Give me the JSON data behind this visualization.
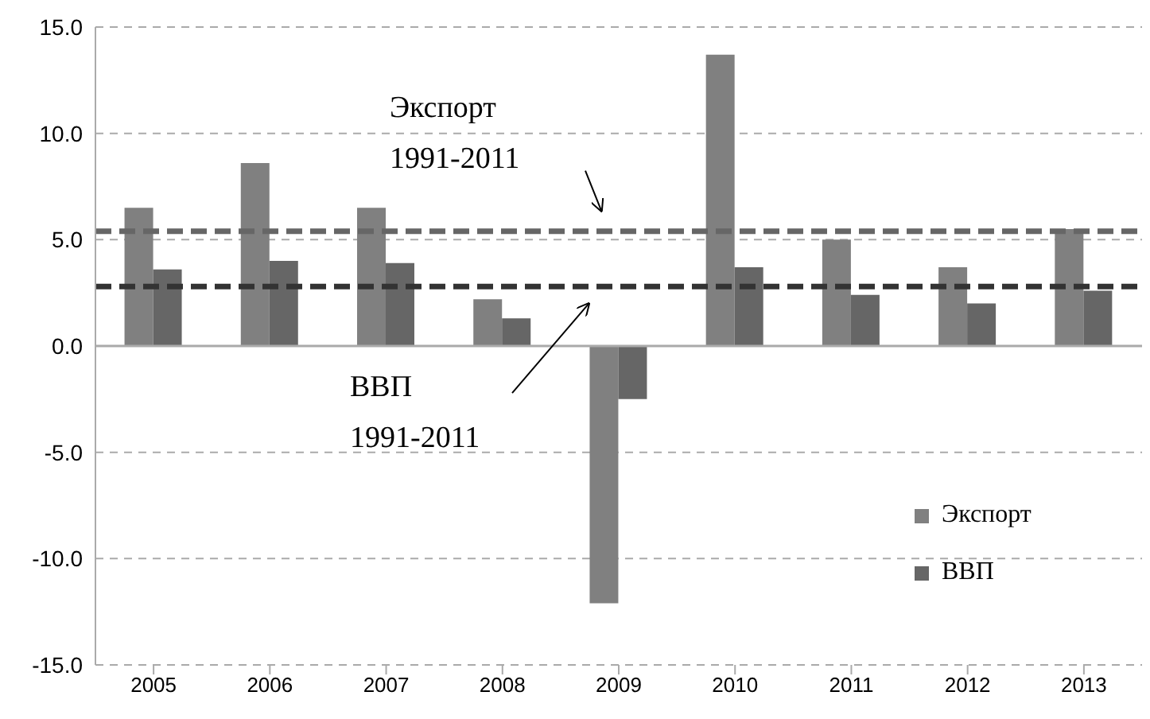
{
  "chart_data": {
    "type": "bar",
    "categories": [
      "2005",
      "2006",
      "2007",
      "2008",
      "2009",
      "2010",
      "2011",
      "2012",
      "2013"
    ],
    "series": [
      {
        "name": "Экспорт",
        "color": "#808080",
        "values": [
          6.5,
          8.6,
          6.5,
          2.2,
          -12.1,
          13.7,
          5.0,
          3.7,
          5.5
        ]
      },
      {
        "name": "ВВП",
        "color": "#666666",
        "values": [
          3.6,
          4.0,
          3.9,
          1.3,
          -2.5,
          3.7,
          2.4,
          2.0,
          2.6
        ]
      }
    ],
    "ylim": [
      -15,
      15
    ],
    "yticks": [
      {
        "value": -15,
        "label": "-15.0"
      },
      {
        "value": -10,
        "label": "-10.0"
      },
      {
        "value": -5,
        "label": "-5.0"
      },
      {
        "value": 0,
        "label": "0.0"
      },
      {
        "value": 5,
        "label": "5.0"
      },
      {
        "value": 10,
        "label": "10.0"
      },
      {
        "value": 15,
        "label": "15.0"
      }
    ],
    "ref_lines": [
      {
        "axis": "y",
        "value": 5.4,
        "label": "Экспорт 1991-2011",
        "color": "#666666",
        "line_style": "dashed"
      },
      {
        "axis": "y",
        "value": 2.8,
        "label": "ВВП 1991-2011",
        "color": "#333333",
        "line_style": "dashed"
      }
    ],
    "grid": "y",
    "legend": "bottom right"
  }
}
